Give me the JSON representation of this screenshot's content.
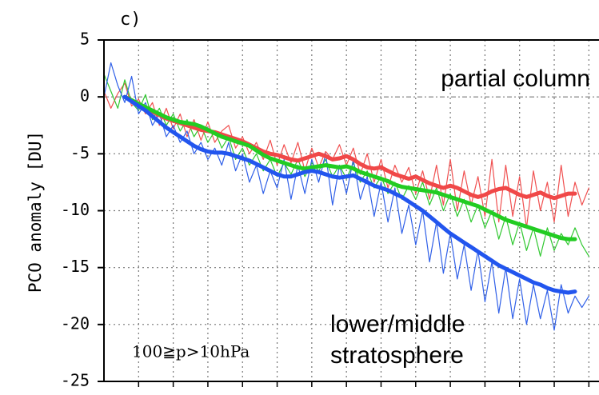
{
  "chart_data": {
    "type": "line",
    "panel_label": "c)",
    "ylabel": "PCO anomaly [DU]",
    "annotations": [
      "partial column",
      "lower/middle",
      "stratosphere",
      "100≧p>10hPa"
    ],
    "x": [
      0,
      2,
      4,
      6,
      8,
      10,
      12,
      14,
      16,
      18,
      20,
      22,
      24,
      26,
      28,
      30,
      32,
      34,
      36,
      38,
      40,
      42,
      44,
      46,
      48,
      50,
      52,
      54,
      56,
      58,
      60,
      62,
      64,
      66,
      68,
      70,
      72,
      74,
      76,
      78,
      80,
      82,
      84,
      86,
      88,
      90,
      92,
      94,
      96,
      98,
      100,
      102,
      104,
      106,
      108,
      110,
      112,
      114,
      116,
      118,
      120,
      122,
      124,
      126,
      128,
      130,
      132,
      134,
      136,
      138,
      140
    ],
    "xlim": [
      0,
      142
    ],
    "xticks": [
      10,
      20,
      30,
      40,
      50,
      60,
      70,
      80,
      90,
      100,
      110,
      120,
      130,
      140
    ],
    "ylim": [
      -25,
      5
    ],
    "yticks": [
      5,
      0,
      -5,
      -10,
      -15,
      -20,
      -25
    ],
    "grid": true,
    "series": [
      {
        "color": "#f05050",
        "linewidth": 1.2,
        "values": [
          0.5,
          -1.0,
          0.3,
          1.2,
          -0.8,
          -0.2,
          -1.5,
          -0.5,
          -2.5,
          -1.0,
          -2.8,
          -1.5,
          -3.5,
          -2.0,
          -3.8,
          -2.2,
          -4.0,
          -3.0,
          -2.5,
          -4.5,
          -3.5,
          -5.0,
          -4.0,
          -5.5,
          -3.8,
          -6.0,
          -4.2,
          -5.8,
          -4.0,
          -6.5,
          -4.5,
          -6.2,
          -4.8,
          -5.5,
          -4.2,
          -6.0,
          -4.5,
          -6.8,
          -5.0,
          -7.5,
          -5.5,
          -8.0,
          -6.0,
          -7.5,
          -6.2,
          -8.5,
          -6.5,
          -9.0,
          -6.0,
          -9.5,
          -5.5,
          -10.0,
          -6.5,
          -9.5,
          -7.0,
          -10.5,
          -5.5,
          -11.0,
          -6.0,
          -10.5,
          -7.0,
          -11.5,
          -6.5,
          -10.0,
          -7.5,
          -11.0,
          -6.0,
          -10.5,
          -7.5,
          -9.5,
          -8.0
        ]
      },
      {
        "color": "#30c830",
        "linewidth": 1.2,
        "values": [
          2.0,
          0.5,
          -1.0,
          1.5,
          -0.5,
          -1.2,
          0.2,
          -2.0,
          -1.0,
          -2.5,
          -1.5,
          -3.0,
          -2.0,
          -3.5,
          -2.5,
          -4.0,
          -3.0,
          -4.5,
          -3.5,
          -5.5,
          -4.5,
          -6.0,
          -5.0,
          -6.5,
          -5.5,
          -7.0,
          -5.8,
          -6.8,
          -5.5,
          -7.0,
          -5.8,
          -6.5,
          -5.5,
          -7.0,
          -6.0,
          -7.2,
          -5.8,
          -7.5,
          -6.5,
          -8.0,
          -7.0,
          -8.5,
          -7.5,
          -9.0,
          -7.8,
          -9.0,
          -7.5,
          -9.5,
          -8.0,
          -10.0,
          -8.5,
          -10.5,
          -9.0,
          -11.0,
          -9.5,
          -11.5,
          -10.0,
          -12.5,
          -10.5,
          -13.0,
          -11.0,
          -13.5,
          -11.5,
          -14.0,
          -11.5,
          -13.5,
          -12.0,
          -13.0,
          -11.5,
          -13.0,
          -14.0
        ]
      },
      {
        "color": "#3060e8",
        "linewidth": 1.2,
        "values": [
          0.0,
          3.0,
          1.0,
          -0.5,
          1.8,
          -1.5,
          -0.5,
          -2.5,
          -1.5,
          -3.5,
          -2.5,
          -4.0,
          -3.0,
          -5.0,
          -4.0,
          -5.5,
          -4.5,
          -6.0,
          -4.0,
          -6.5,
          -5.0,
          -7.5,
          -6.0,
          -8.5,
          -6.5,
          -8.0,
          -5.5,
          -9.0,
          -6.0,
          -8.5,
          -5.5,
          -7.5,
          -5.0,
          -9.5,
          -6.0,
          -8.5,
          -5.5,
          -9.0,
          -7.0,
          -10.5,
          -7.5,
          -11.0,
          -8.0,
          -12.0,
          -9.5,
          -13.0,
          -10.0,
          -14.5,
          -11.0,
          -15.5,
          -12.0,
          -16.0,
          -13.0,
          -17.0,
          -13.5,
          -18.0,
          -14.5,
          -19.0,
          -15.0,
          -19.5,
          -16.0,
          -20.0,
          -16.5,
          -19.5,
          -17.0,
          -20.5,
          -16.5,
          -19.0,
          -17.5,
          -18.5,
          -17.5
        ]
      },
      {
        "color": "#f04848",
        "linewidth": 5,
        "values": [
          null,
          null,
          null,
          0.0,
          -0.3,
          -0.7,
          -1.0,
          -1.3,
          -1.6,
          -1.9,
          -2.1,
          -2.3,
          -2.5,
          -2.7,
          -2.9,
          -3.0,
          -3.1,
          -3.3,
          -3.5,
          -3.7,
          -3.9,
          -4.2,
          -4.5,
          -4.8,
          -5.0,
          -5.1,
          -5.3,
          -5.5,
          -5.6,
          -5.4,
          -5.2,
          -5.0,
          -5.2,
          -5.5,
          -5.4,
          -5.2,
          -5.5,
          -5.9,
          -6.2,
          -6.3,
          -6.2,
          -6.5,
          -6.8,
          -7.0,
          -7.2,
          -7.0,
          -7.3,
          -7.6,
          -7.8,
          -8.0,
          -7.8,
          -8.0,
          -8.3,
          -8.6,
          -8.8,
          -8.6,
          -8.3,
          -8.1,
          -8.0,
          -8.3,
          -8.6,
          -8.8,
          -8.6,
          -8.4,
          -8.7,
          -8.9,
          -8.7,
          -8.5,
          -8.5,
          null,
          null
        ]
      },
      {
        "color": "#22cc22",
        "linewidth": 5,
        "values": [
          null,
          null,
          null,
          0.0,
          -0.3,
          -0.6,
          -0.9,
          -1.2,
          -1.5,
          -1.8,
          -2.0,
          -2.2,
          -2.3,
          -2.4,
          -2.6,
          -2.9,
          -3.2,
          -3.5,
          -3.7,
          -3.9,
          -4.1,
          -4.3,
          -4.7,
          -5.1,
          -5.4,
          -5.6,
          -5.8,
          -6.0,
          -6.2,
          -6.3,
          -6.2,
          -6.1,
          -6.0,
          -6.1,
          -6.2,
          -6.1,
          -6.3,
          -6.6,
          -6.8,
          -7.0,
          -7.2,
          -7.4,
          -7.7,
          -7.9,
          -8.0,
          -8.1,
          -8.2,
          -8.3,
          -8.4,
          -8.6,
          -8.8,
          -9.0,
          -9.2,
          -9.4,
          -9.6,
          -9.9,
          -10.2,
          -10.5,
          -10.8,
          -11.0,
          -11.2,
          -11.4,
          -11.6,
          -11.8,
          -12.0,
          -12.2,
          -12.4,
          -12.5,
          -12.5,
          null,
          null
        ]
      },
      {
        "color": "#2255ee",
        "linewidth": 5,
        "values": [
          null,
          null,
          null,
          0.0,
          -0.4,
          -0.8,
          -1.2,
          -1.7,
          -2.2,
          -2.7,
          -3.1,
          -3.5,
          -3.9,
          -4.3,
          -4.6,
          -4.8,
          -4.9,
          -4.9,
          -5.0,
          -5.2,
          -5.4,
          -5.6,
          -5.9,
          -6.2,
          -6.5,
          -6.8,
          -7.0,
          -7.0,
          -6.8,
          -6.6,
          -6.5,
          -6.6,
          -6.8,
          -7.0,
          -7.1,
          -7.0,
          -6.9,
          -7.2,
          -7.5,
          -7.8,
          -8.0,
          -8.2,
          -8.5,
          -8.8,
          -9.2,
          -9.6,
          -10.0,
          -10.5,
          -11.0,
          -11.5,
          -12.0,
          -12.4,
          -12.8,
          -13.2,
          -13.6,
          -14.0,
          -14.4,
          -14.8,
          -15.1,
          -15.4,
          -15.7,
          -16.0,
          -16.3,
          -16.5,
          -16.8,
          -17.0,
          -17.1,
          -17.2,
          -17.1,
          null,
          null
        ]
      }
    ]
  }
}
